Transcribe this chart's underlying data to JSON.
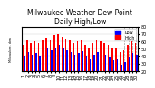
{
  "title_line1": "Milwaukee Weather Dew Point",
  "title_line2": "Daily High/Low",
  "ylabel_left": "Milwaukee, dew",
  "bar_width": 0.35,
  "background_color": "#ffffff",
  "plot_bg_color": "#ffffff",
  "grid_color": "#cccccc",
  "high_color": "#ff0000",
  "low_color": "#0000ff",
  "legend_high": "High",
  "legend_low": "Low",
  "days": [
    1,
    2,
    3,
    4,
    5,
    6,
    7,
    8,
    9,
    10,
    11,
    12,
    13,
    14,
    15,
    16,
    17,
    18,
    19,
    20,
    21,
    22,
    23,
    24,
    25,
    26,
    27,
    28,
    29,
    30
  ],
  "highs": [
    55,
    62,
    58,
    60,
    57,
    61,
    65,
    63,
    68,
    70,
    66,
    64,
    62,
    58,
    60,
    63,
    55,
    52,
    58,
    62,
    60,
    58,
    55,
    50,
    52,
    45,
    48,
    55,
    60,
    58
  ],
  "lows": [
    40,
    45,
    42,
    44,
    41,
    45,
    50,
    48,
    52,
    55,
    50,
    48,
    46,
    42,
    44,
    47,
    40,
    36,
    42,
    46,
    44,
    42,
    38,
    34,
    36,
    28,
    32,
    39,
    44,
    42
  ],
  "ylim": [
    20,
    80
  ],
  "yticks": [
    20,
    30,
    40,
    50,
    60,
    70,
    80
  ],
  "dashed_from_day": 26,
  "title_fontsize": 5.5,
  "tick_fontsize": 3.5,
  "legend_fontsize": 3.5
}
